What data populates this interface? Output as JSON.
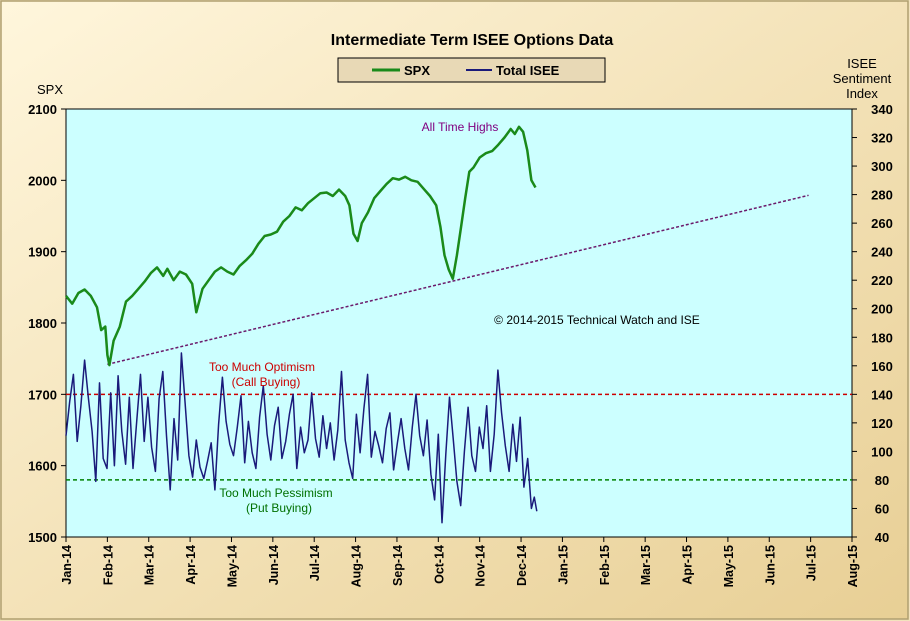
{
  "chart_data": {
    "type": "line",
    "title": "Intermediate Term ISEE Options Data",
    "legend": {
      "placement": "top-center",
      "items": [
        "SPX",
        "Total ISEE"
      ]
    },
    "colors": {
      "spx": "#1a8a1a",
      "isee": "#1a1a7a",
      "plot_bg": "#ccffff",
      "frame_bg": "#f3e3bd",
      "optimism": "#cc0000",
      "pessimism": "#008000",
      "trend": "#6b1a6b"
    },
    "left_axis": {
      "label": "SPX",
      "min": 1500,
      "max": 2100,
      "ticks": [
        1500,
        1600,
        1700,
        1800,
        1900,
        2000,
        2100
      ]
    },
    "right_axis": {
      "label_lines": [
        "ISEE",
        "Sentiment",
        "Index"
      ],
      "min": 40,
      "max": 340,
      "ticks": [
        40,
        60,
        80,
        100,
        120,
        140,
        160,
        180,
        200,
        220,
        240,
        260,
        280,
        300,
        320,
        340
      ]
    },
    "x_axis": {
      "ticks": [
        "Jan-14",
        "Feb-14",
        "Mar-14",
        "Apr-14",
        "May-14",
        "Jun-14",
        "Jul-14",
        "Aug-14",
        "Sep-14",
        "Oct-14",
        "Nov-14",
        "Dec-14",
        "Jan-15",
        "Feb-15",
        "Mar-15",
        "Apr-15",
        "May-15",
        "Jun-15",
        "Jul-15",
        "Aug-15"
      ]
    },
    "grid": false,
    "series": [
      {
        "name": "SPX",
        "axis": "left",
        "points": [
          [
            0.0,
            1838
          ],
          [
            0.15,
            1827
          ],
          [
            0.3,
            1842
          ],
          [
            0.45,
            1847
          ],
          [
            0.6,
            1838
          ],
          [
            0.75,
            1822
          ],
          [
            0.85,
            1790
          ],
          [
            0.95,
            1795
          ],
          [
            1.0,
            1755
          ],
          [
            1.05,
            1741
          ],
          [
            1.15,
            1775
          ],
          [
            1.3,
            1795
          ],
          [
            1.45,
            1830
          ],
          [
            1.6,
            1838
          ],
          [
            1.75,
            1848
          ],
          [
            1.9,
            1858
          ],
          [
            2.05,
            1870
          ],
          [
            2.2,
            1878
          ],
          [
            2.35,
            1866
          ],
          [
            2.45,
            1876
          ],
          [
            2.6,
            1860
          ],
          [
            2.75,
            1872
          ],
          [
            2.9,
            1868
          ],
          [
            3.05,
            1855
          ],
          [
            3.15,
            1815
          ],
          [
            3.3,
            1848
          ],
          [
            3.45,
            1860
          ],
          [
            3.6,
            1872
          ],
          [
            3.75,
            1878
          ],
          [
            3.9,
            1872
          ],
          [
            4.05,
            1868
          ],
          [
            4.2,
            1880
          ],
          [
            4.35,
            1888
          ],
          [
            4.5,
            1897
          ],
          [
            4.65,
            1911
          ],
          [
            4.8,
            1922
          ],
          [
            4.95,
            1924
          ],
          [
            5.1,
            1928
          ],
          [
            5.25,
            1942
          ],
          [
            5.4,
            1950
          ],
          [
            5.55,
            1962
          ],
          [
            5.7,
            1958
          ],
          [
            5.85,
            1968
          ],
          [
            6.0,
            1975
          ],
          [
            6.15,
            1982
          ],
          [
            6.3,
            1983
          ],
          [
            6.45,
            1978
          ],
          [
            6.6,
            1987
          ],
          [
            6.75,
            1978
          ],
          [
            6.85,
            1965
          ],
          [
            6.95,
            1925
          ],
          [
            7.05,
            1915
          ],
          [
            7.15,
            1940
          ],
          [
            7.3,
            1955
          ],
          [
            7.45,
            1975
          ],
          [
            7.6,
            1985
          ],
          [
            7.75,
            1995
          ],
          [
            7.9,
            2003
          ],
          [
            8.05,
            2001
          ],
          [
            8.2,
            2005
          ],
          [
            8.35,
            2000
          ],
          [
            8.5,
            1998
          ],
          [
            8.65,
            1988
          ],
          [
            8.8,
            1978
          ],
          [
            8.95,
            1965
          ],
          [
            9.05,
            1935
          ],
          [
            9.15,
            1895
          ],
          [
            9.25,
            1875
          ],
          [
            9.35,
            1862
          ],
          [
            9.45,
            1895
          ],
          [
            9.55,
            1935
          ],
          [
            9.65,
            1975
          ],
          [
            9.75,
            2012
          ],
          [
            9.85,
            2018
          ],
          [
            10.0,
            2032
          ],
          [
            10.15,
            2038
          ],
          [
            10.3,
            2041
          ],
          [
            10.45,
            2050
          ],
          [
            10.6,
            2060
          ],
          [
            10.75,
            2072
          ],
          [
            10.85,
            2065
          ],
          [
            10.95,
            2075
          ],
          [
            11.05,
            2068
          ],
          [
            11.15,
            2042
          ],
          [
            11.25,
            2000
          ],
          [
            11.35,
            1990
          ]
        ]
      },
      {
        "name": "Total ISEE",
        "axis": "right",
        "points": [
          [
            0.0,
            111
          ],
          [
            0.09,
            135
          ],
          [
            0.18,
            154
          ],
          [
            0.27,
            107
          ],
          [
            0.36,
            132
          ],
          [
            0.45,
            164
          ],
          [
            0.54,
            138
          ],
          [
            0.63,
            114
          ],
          [
            0.72,
            79
          ],
          [
            0.81,
            148
          ],
          [
            0.9,
            95
          ],
          [
            0.99,
            88
          ],
          [
            1.08,
            141
          ],
          [
            1.17,
            90
          ],
          [
            1.26,
            153
          ],
          [
            1.35,
            114
          ],
          [
            1.44,
            91
          ],
          [
            1.53,
            138
          ],
          [
            1.62,
            88
          ],
          [
            1.71,
            121
          ],
          [
            1.8,
            154
          ],
          [
            1.89,
            107
          ],
          [
            1.98,
            138
          ],
          [
            2.07,
            103
          ],
          [
            2.16,
            86
          ],
          [
            2.25,
            137
          ],
          [
            2.34,
            156
          ],
          [
            2.43,
            111
          ],
          [
            2.52,
            73
          ],
          [
            2.61,
            123
          ],
          [
            2.7,
            94
          ],
          [
            2.79,
            169
          ],
          [
            2.88,
            134
          ],
          [
            2.97,
            97
          ],
          [
            3.06,
            82
          ],
          [
            3.15,
            108
          ],
          [
            3.24,
            89
          ],
          [
            3.33,
            81
          ],
          [
            3.42,
            93
          ],
          [
            3.51,
            106
          ],
          [
            3.6,
            73
          ],
          [
            3.69,
            119
          ],
          [
            3.78,
            152
          ],
          [
            3.87,
            121
          ],
          [
            3.96,
            105
          ],
          [
            4.05,
            97
          ],
          [
            4.14,
            117
          ],
          [
            4.23,
            139
          ],
          [
            4.32,
            92
          ],
          [
            4.41,
            121
          ],
          [
            4.5,
            99
          ],
          [
            4.59,
            88
          ],
          [
            4.68,
            124
          ],
          [
            4.77,
            146
          ],
          [
            4.86,
            112
          ],
          [
            4.95,
            94
          ],
          [
            5.04,
            118
          ],
          [
            5.13,
            131
          ],
          [
            5.22,
            95
          ],
          [
            5.31,
            107
          ],
          [
            5.4,
            126
          ],
          [
            5.49,
            140
          ],
          [
            5.58,
            88
          ],
          [
            5.67,
            117
          ],
          [
            5.76,
            99
          ],
          [
            5.85,
            108
          ],
          [
            5.94,
            141
          ],
          [
            6.03,
            109
          ],
          [
            6.12,
            96
          ],
          [
            6.21,
            125
          ],
          [
            6.3,
            102
          ],
          [
            6.39,
            120
          ],
          [
            6.48,
            94
          ],
          [
            6.57,
            115
          ],
          [
            6.66,
            156
          ],
          [
            6.75,
            108
          ],
          [
            6.84,
            92
          ],
          [
            6.93,
            81
          ],
          [
            7.02,
            126
          ],
          [
            7.11,
            99
          ],
          [
            7.2,
            130
          ],
          [
            7.29,
            154
          ],
          [
            7.38,
            96
          ],
          [
            7.47,
            114
          ],
          [
            7.56,
            104
          ],
          [
            7.65,
            92
          ],
          [
            7.74,
            116
          ],
          [
            7.83,
            127
          ],
          [
            7.92,
            87
          ],
          [
            8.01,
            106
          ],
          [
            8.1,
            123
          ],
          [
            8.19,
            102
          ],
          [
            8.28,
            87
          ],
          [
            8.37,
            117
          ],
          [
            8.46,
            140
          ],
          [
            8.55,
            111
          ],
          [
            8.64,
            97
          ],
          [
            8.73,
            122
          ],
          [
            8.82,
            84
          ],
          [
            8.91,
            66
          ],
          [
            9.0,
            112
          ],
          [
            9.09,
            50
          ],
          [
            9.18,
            98
          ],
          [
            9.27,
            138
          ],
          [
            9.36,
            109
          ],
          [
            9.45,
            79
          ],
          [
            9.54,
            62
          ],
          [
            9.63,
            100
          ],
          [
            9.72,
            131
          ],
          [
            9.81,
            97
          ],
          [
            9.9,
            86
          ],
          [
            9.99,
            117
          ],
          [
            10.08,
            102
          ],
          [
            10.17,
            132
          ],
          [
            10.26,
            86
          ],
          [
            10.35,
            112
          ],
          [
            10.44,
            157
          ],
          [
            10.53,
            127
          ],
          [
            10.62,
            104
          ],
          [
            10.71,
            86
          ],
          [
            10.8,
            119
          ],
          [
            10.89,
            93
          ],
          [
            10.98,
            124
          ],
          [
            11.07,
            75
          ],
          [
            11.16,
            95
          ],
          [
            11.25,
            60
          ],
          [
            11.32,
            68
          ],
          [
            11.38,
            58
          ]
        ]
      }
    ],
    "reference_lines": [
      {
        "name": "Too Much Optimism",
        "label_lines": [
          "Too Much Optimism",
          "(Call Buying)"
        ],
        "axis": "right",
        "value": 140
      },
      {
        "name": "Too Much Pessimism",
        "label_lines": [
          "Too Much Pessimism",
          "(Put Buying)"
        ],
        "axis": "right",
        "value": 80
      }
    ],
    "trend_line": {
      "axis": "left",
      "from": [
        1.0,
        1742
      ],
      "to": [
        17.95,
        1979
      ]
    },
    "annotations": [
      "All Time Highs",
      "© 2014-2015  Technical  Watch and ISE"
    ]
  }
}
